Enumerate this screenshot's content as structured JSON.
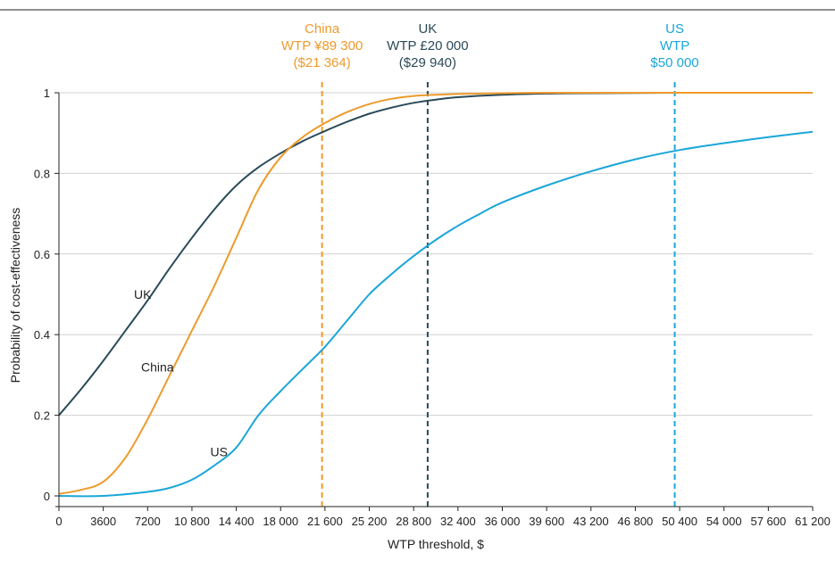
{
  "chart_data": {
    "type": "line",
    "title": "",
    "xlabel": "WTP threshold, $",
    "ylabel": "Probability of cost-effectiveness",
    "xlim": [
      0,
      61200
    ],
    "ylim": [
      0,
      1
    ],
    "x_ticks": [
      0,
      3600,
      7200,
      10800,
      14400,
      18000,
      21600,
      25200,
      28800,
      32400,
      36000,
      39600,
      43200,
      46800,
      50400,
      54000,
      57600,
      61200
    ],
    "x_tick_labels": [
      "0",
      "3600",
      "7200",
      "10 800",
      "14 400",
      "18 000",
      "21 600",
      "25 200",
      "28 800",
      "32 400",
      "36 000",
      "39 600",
      "43 200",
      "46 800",
      "50 400",
      "54 000",
      "57 600",
      "61 200"
    ],
    "y_ticks": [
      0,
      0.2,
      0.4,
      0.6,
      0.8,
      1
    ],
    "y_tick_labels": [
      "0",
      "0.2",
      "0.4",
      "0.6",
      "0.8",
      "1"
    ],
    "grid": "horizontal",
    "series": [
      {
        "name": "UK",
        "color": "#2a4a58",
        "x": [
          0,
          1800,
          3600,
          5400,
          7200,
          9000,
          10800,
          12600,
          14400,
          16200,
          18000,
          19800,
          21600,
          23400,
          25200,
          27000,
          28800,
          30600,
          32400,
          36000,
          39600,
          43200,
          50400,
          61200
        ],
        "y": [
          0.2,
          0.265,
          0.335,
          0.41,
          0.485,
          0.565,
          0.64,
          0.71,
          0.77,
          0.815,
          0.85,
          0.88,
          0.905,
          0.928,
          0.948,
          0.963,
          0.975,
          0.983,
          0.989,
          0.995,
          0.998,
          0.999,
          1.0,
          1.0
        ]
      },
      {
        "name": "China",
        "color": "#ee9a2c",
        "x": [
          0,
          1800,
          3600,
          5400,
          7200,
          9000,
          10800,
          12600,
          14400,
          16200,
          18000,
          19800,
          21600,
          23400,
          25200,
          27000,
          28800,
          30600,
          32400,
          36000,
          39600,
          43200,
          50400,
          61200
        ],
        "y": [
          0.005,
          0.015,
          0.035,
          0.095,
          0.19,
          0.3,
          0.41,
          0.52,
          0.64,
          0.76,
          0.84,
          0.89,
          0.925,
          0.952,
          0.972,
          0.985,
          0.992,
          0.995,
          0.997,
          0.999,
          1.0,
          1.0,
          1.0,
          1.0
        ]
      },
      {
        "name": "US",
        "color": "#1aa6d8",
        "x": [
          0,
          3600,
          7200,
          9000,
          10800,
          12600,
          14400,
          16200,
          18000,
          19800,
          21600,
          23400,
          25200,
          27000,
          28800,
          30600,
          32400,
          34200,
          36000,
          39600,
          43200,
          46800,
          50400,
          54000,
          57600,
          61200
        ],
        "y": [
          0.0,
          0.0,
          0.01,
          0.02,
          0.04,
          0.075,
          0.12,
          0.2,
          0.26,
          0.315,
          0.37,
          0.435,
          0.5,
          0.55,
          0.595,
          0.635,
          0.67,
          0.7,
          0.728,
          0.77,
          0.805,
          0.835,
          0.858,
          0.875,
          0.89,
          0.903
        ]
      }
    ],
    "series_labels": [
      {
        "text": "UK",
        "x": 6800,
        "y": 0.5
      },
      {
        "text": "China",
        "x": 8000,
        "y": 0.32
      },
      {
        "text": "US",
        "x": 13000,
        "y": 0.11
      }
    ],
    "thresholds": [
      {
        "x": 21364,
        "color": "#ee9a2c",
        "lines": [
          "China",
          "WTP ¥89 300",
          "($21 364)"
        ]
      },
      {
        "x": 29940,
        "color": "#2a4a58",
        "lines": [
          "UK",
          "WTP £20 000",
          "($29 940)"
        ]
      },
      {
        "x": 50000,
        "color": "#1aa6d8",
        "lines": [
          "US",
          "WTP",
          "$50 000"
        ]
      }
    ]
  }
}
